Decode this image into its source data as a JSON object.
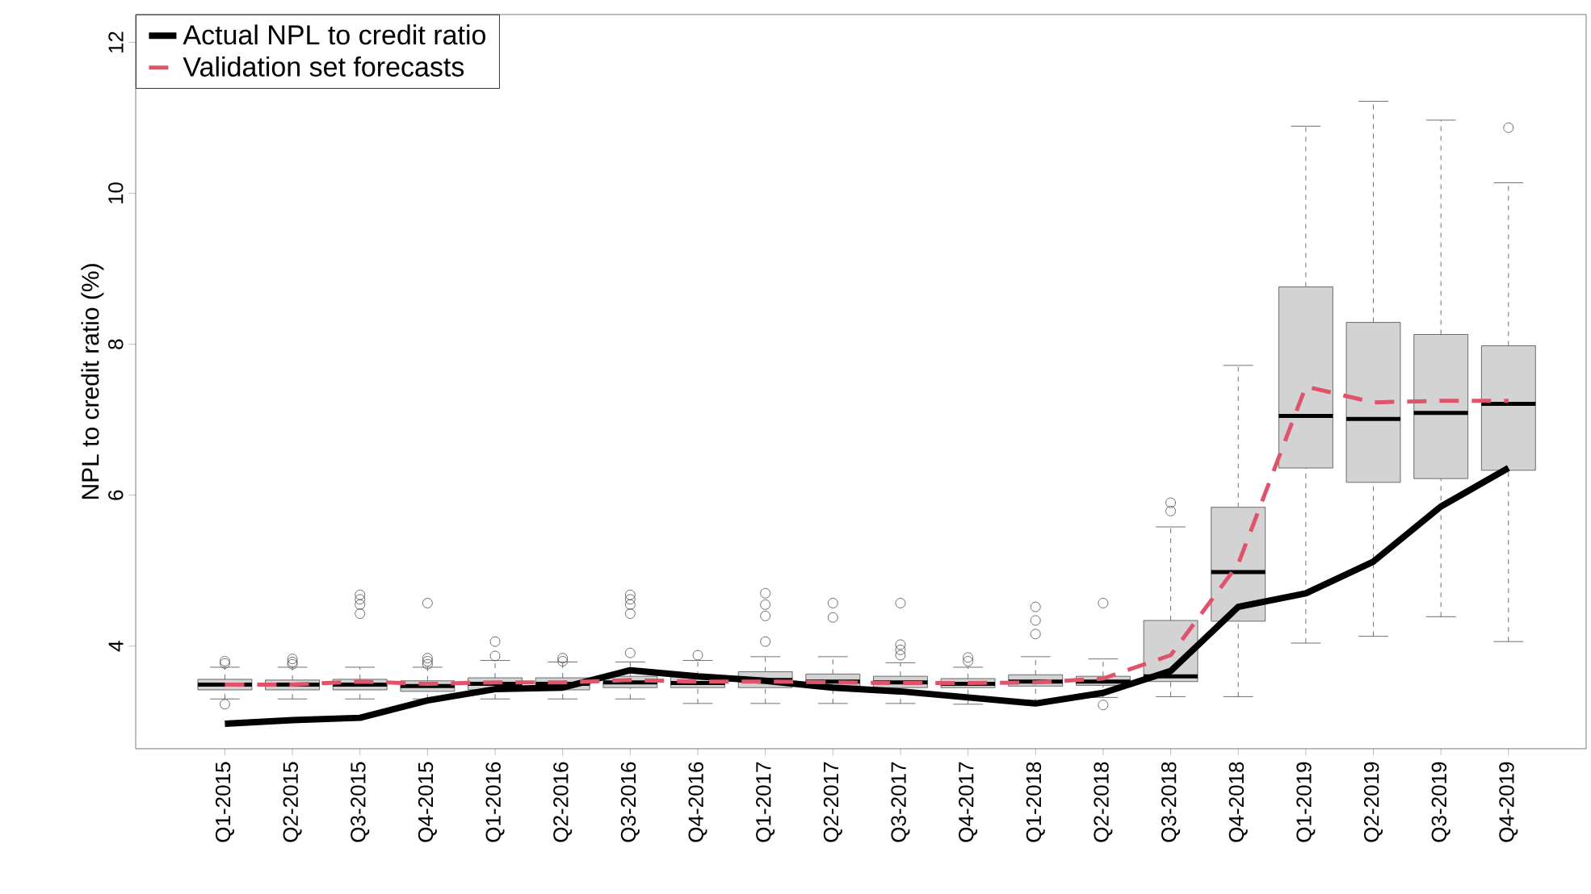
{
  "chart_data": {
    "type": "box",
    "ylabel": "NPL to credit ratio (%)",
    "categories": [
      "Q1-2015",
      "Q2-2015",
      "Q3-2015",
      "Q4-2015",
      "Q1-2016",
      "Q2-2016",
      "Q3-2016",
      "Q4-2016",
      "Q1-2017",
      "Q2-2017",
      "Q3-2017",
      "Q4-2017",
      "Q1-2018",
      "Q2-2018",
      "Q3-2018",
      "Q4-2018",
      "Q1-2019",
      "Q2-2019",
      "Q3-2019",
      "Q4-2019"
    ],
    "color": "#d3d3d3",
    "boxes": [
      {
        "low": 3.3,
        "q1": 3.42,
        "median": 3.49,
        "q3": 3.56,
        "high": 3.72,
        "outliers": [
          3.8,
          3.77,
          3.23
        ]
      },
      {
        "low": 3.3,
        "q1": 3.42,
        "median": 3.49,
        "q3": 3.55,
        "high": 3.72,
        "outliers": [
          3.83,
          3.79,
          3.76
        ]
      },
      {
        "low": 3.3,
        "q1": 3.42,
        "median": 3.49,
        "q3": 3.56,
        "high": 3.72,
        "outliers": [
          4.68,
          4.62,
          4.55,
          4.43
        ]
      },
      {
        "low": 3.3,
        "q1": 3.4,
        "median": 3.47,
        "q3": 3.54,
        "high": 3.72,
        "outliers": [
          4.57,
          3.84,
          3.8,
          3.76
        ]
      },
      {
        "low": 3.3,
        "q1": 3.42,
        "median": 3.5,
        "q3": 3.58,
        "high": 3.81,
        "outliers": [
          4.06,
          3.87
        ]
      },
      {
        "low": 3.3,
        "q1": 3.42,
        "median": 3.5,
        "q3": 3.58,
        "high": 3.79,
        "outliers": [
          3.84,
          3.8
        ]
      },
      {
        "low": 3.3,
        "q1": 3.45,
        "median": 3.52,
        "q3": 3.6,
        "high": 3.79,
        "outliers": [
          4.68,
          4.62,
          4.55,
          4.43,
          3.91
        ]
      },
      {
        "low": 3.24,
        "q1": 3.45,
        "median": 3.51,
        "q3": 3.6,
        "high": 3.81,
        "outliers": [
          3.88
        ]
      },
      {
        "low": 3.24,
        "q1": 3.45,
        "median": 3.55,
        "q3": 3.66,
        "high": 3.86,
        "outliers": [
          4.7,
          4.55,
          4.4,
          4.06
        ]
      },
      {
        "low": 3.24,
        "q1": 3.47,
        "median": 3.53,
        "q3": 3.63,
        "high": 3.86,
        "outliers": [
          4.57,
          4.38
        ]
      },
      {
        "low": 3.24,
        "q1": 3.45,
        "median": 3.52,
        "q3": 3.6,
        "high": 3.78,
        "outliers": [
          4.57,
          4.02,
          3.95,
          3.88
        ]
      },
      {
        "low": 3.23,
        "q1": 3.45,
        "median": 3.5,
        "q3": 3.57,
        "high": 3.72,
        "outliers": [
          3.85,
          3.8
        ]
      },
      {
        "low": 3.24,
        "q1": 3.47,
        "median": 3.53,
        "q3": 3.62,
        "high": 3.86,
        "outliers": [
          4.52,
          4.34,
          4.16
        ]
      },
      {
        "low": 3.32,
        "q1": 3.48,
        "median": 3.53,
        "q3": 3.6,
        "high": 3.83,
        "outliers": [
          4.57,
          3.22
        ]
      },
      {
        "low": 3.33,
        "q1": 3.53,
        "median": 3.6,
        "q3": 4.34,
        "high": 5.58,
        "outliers": [
          5.9,
          5.79
        ]
      },
      {
        "low": 3.33,
        "q1": 4.33,
        "median": 4.98,
        "q3": 5.84,
        "high": 7.72
      },
      {
        "low": 4.04,
        "q1": 6.36,
        "median": 7.05,
        "q3": 8.76,
        "high": 10.89
      },
      {
        "low": 4.13,
        "q1": 6.17,
        "median": 7.01,
        "q3": 8.29,
        "high": 11.22
      },
      {
        "low": 4.39,
        "q1": 6.22,
        "median": 7.09,
        "q3": 8.13,
        "high": 10.97
      },
      {
        "low": 4.06,
        "q1": 6.33,
        "median": 7.21,
        "q3": 7.98,
        "high": 10.14,
        "outliers": [
          10.87
        ]
      }
    ],
    "series": [
      {
        "name": "Actual NPL to credit ratio",
        "type": "line",
        "color": "#000000",
        "line_style": "solid",
        "values": [
          2.97,
          3.02,
          3.05,
          3.28,
          3.43,
          3.45,
          3.68,
          3.6,
          3.54,
          3.45,
          3.4,
          3.32,
          3.24,
          3.38,
          3.67,
          4.52,
          4.7,
          5.12,
          5.85,
          6.36
        ]
      },
      {
        "name": "Validation set forecasts",
        "type": "line",
        "color": "#df536b",
        "line_style": "dashed",
        "values": [
          3.49,
          3.49,
          3.53,
          3.5,
          3.52,
          3.52,
          3.55,
          3.53,
          3.53,
          3.52,
          3.51,
          3.51,
          3.52,
          3.57,
          3.88,
          5.09,
          7.44,
          7.23,
          7.25,
          7.25
        ]
      }
    ],
    "ylim": [
      2.64,
      12.37
    ],
    "yticks": [
      4,
      6,
      8,
      10,
      12
    ],
    "legend": "top left"
  }
}
